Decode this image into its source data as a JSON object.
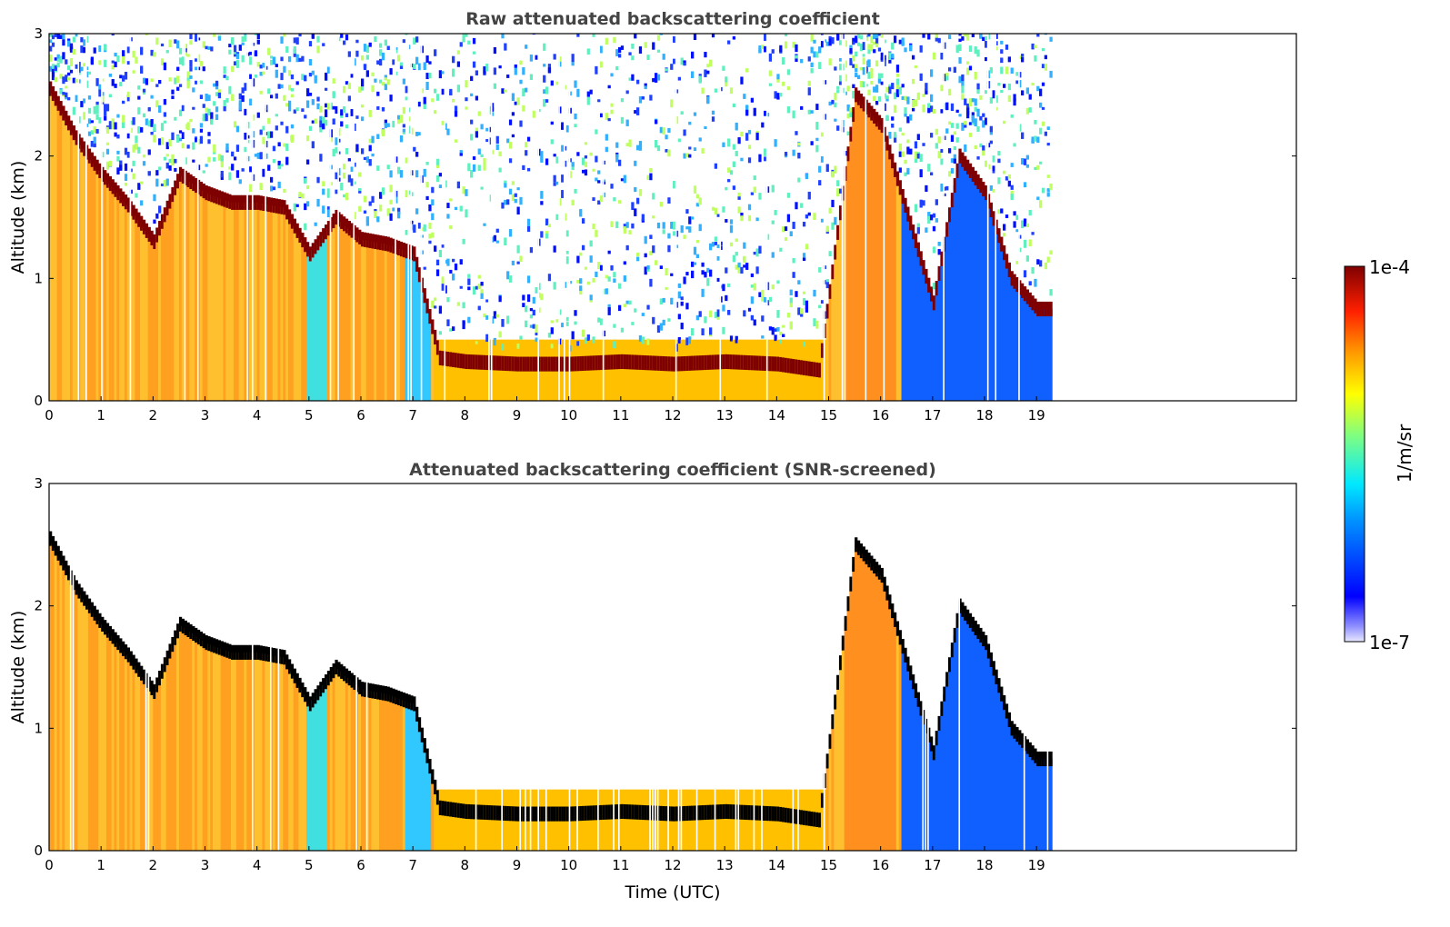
{
  "chart_data": [
    {
      "type": "heatmap",
      "title": "Raw attenuated backscattering coefficient",
      "xlabel": "",
      "ylabel": "Altitude (km)",
      "xlim": [
        0,
        24
      ],
      "ylim": [
        0,
        3
      ],
      "x_ticks": [
        "0",
        "1",
        "2",
        "3",
        "4",
        "5",
        "6",
        "7",
        "8",
        "9",
        "10",
        "11",
        "12",
        "13",
        "14",
        "15",
        "16",
        "17",
        "18",
        "19"
      ],
      "y_ticks": [
        "0",
        "1",
        "2",
        "3"
      ],
      "data_end_time": 19.3,
      "screened": false,
      "cloud_layer_altitude_km": [
        {
          "time": 0.0,
          "altitude": 2.55
        },
        {
          "time": 0.5,
          "altitude": 2.15
        },
        {
          "time": 1.0,
          "altitude": 1.85
        },
        {
          "time": 1.5,
          "altitude": 1.6
        },
        {
          "time": 2.0,
          "altitude": 1.3
        },
        {
          "time": 2.5,
          "altitude": 1.85
        },
        {
          "time": 3.0,
          "altitude": 1.7
        },
        {
          "time": 3.5,
          "altitude": 1.62
        },
        {
          "time": 4.0,
          "altitude": 1.62
        },
        {
          "time": 4.5,
          "altitude": 1.58
        },
        {
          "time": 5.0,
          "altitude": 1.2
        },
        {
          "time": 5.5,
          "altitude": 1.5
        },
        {
          "time": 6.0,
          "altitude": 1.32
        },
        {
          "time": 6.5,
          "altitude": 1.28
        },
        {
          "time": 7.0,
          "altitude": 1.2
        },
        {
          "time": 7.5,
          "altitude": 0.35
        },
        {
          "time": 8.0,
          "altitude": 0.32
        },
        {
          "time": 9.0,
          "altitude": 0.3
        },
        {
          "time": 10.0,
          "altitude": 0.3
        },
        {
          "time": 11.0,
          "altitude": 0.32
        },
        {
          "time": 12.0,
          "altitude": 0.3
        },
        {
          "time": 13.0,
          "altitude": 0.32
        },
        {
          "time": 14.0,
          "altitude": 0.3
        },
        {
          "time": 14.8,
          "altitude": 0.25
        },
        {
          "time": 15.5,
          "altitude": 2.5
        },
        {
          "time": 16.0,
          "altitude": 2.25
        },
        {
          "time": 17.0,
          "altitude": 0.8
        },
        {
          "time": 17.5,
          "altitude": 2.0
        },
        {
          "time": 18.0,
          "altitude": 1.7
        },
        {
          "time": 18.5,
          "altitude": 1.0
        },
        {
          "time": 19.0,
          "altitude": 0.75
        }
      ]
    },
    {
      "type": "heatmap",
      "title": "Attenuated backscattering coefficient (SNR-screened)",
      "xlabel": "Time (UTC)",
      "ylabel": "Altitude (km)",
      "xlim": [
        0,
        24
      ],
      "ylim": [
        0,
        3
      ],
      "x_ticks": [
        "0",
        "1",
        "2",
        "3",
        "4",
        "5",
        "6",
        "7",
        "8",
        "9",
        "10",
        "11",
        "12",
        "13",
        "14",
        "15",
        "16",
        "17",
        "18",
        "19"
      ],
      "y_ticks": [
        "0",
        "1",
        "2",
        "3"
      ],
      "data_end_time": 19.3,
      "screened": true
    }
  ],
  "colorbar": {
    "label": "1/m/sr",
    "max_label": "1e-4",
    "min_label": "1e-7",
    "scale": "log",
    "colormap": "jet",
    "colors": [
      "#00007f",
      "#0000ff",
      "#007fff",
      "#00ffff",
      "#7fff7f",
      "#ffff00",
      "#ff7f00",
      "#ff0000",
      "#7f0000"
    ]
  }
}
